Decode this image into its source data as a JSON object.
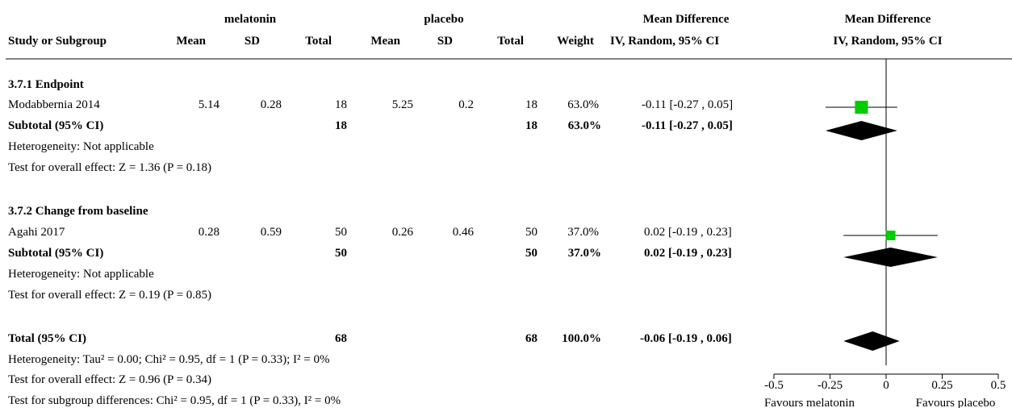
{
  "header": {
    "group1": "melatonin",
    "group2": "placebo",
    "effect_title": "Mean Difference",
    "effect_method": "IV, Random, 95% CI",
    "plot_title": "Mean Difference",
    "plot_method": "IV, Random, 95% CI",
    "col_study": "Study or Subgroup",
    "col_mean1": "Mean",
    "col_sd1": "SD",
    "col_total1": "Total",
    "col_mean2": "Mean",
    "col_sd2": "SD",
    "col_total2": "Total",
    "col_weight": "Weight"
  },
  "subgroups": [
    {
      "title": "3.7.1 Endpoint",
      "study": {
        "name": "Modabbernia 2014",
        "mean1": "5.14",
        "sd1": "0.28",
        "n1": "18",
        "mean2": "5.25",
        "sd2": "0.2",
        "n2": "18",
        "weight": "63.0%",
        "ci": "-0.11 [-0.27 , 0.05]"
      },
      "subtotal": {
        "label": "Subtotal (95% CI)",
        "n1": "18",
        "n2": "18",
        "weight": "63.0%",
        "ci": "-0.11 [-0.27 , 0.05]"
      },
      "heterogeneity": "Heterogeneity: Not applicable",
      "overall": "Test for overall effect: Z = 1.36 (P = 0.18)"
    },
    {
      "title": "3.7.2 Change from baseline",
      "study": {
        "name": "Agahi 2017",
        "mean1": "0.28",
        "sd1": "0.59",
        "n1": "50",
        "mean2": "0.26",
        "sd2": "0.46",
        "n2": "50",
        "weight": "37.0%",
        "ci": "0.02 [-0.19 , 0.23]"
      },
      "subtotal": {
        "label": "Subtotal (95% CI)",
        "n1": "50",
        "n2": "50",
        "weight": "37.0%",
        "ci": "0.02 [-0.19 , 0.23]"
      },
      "heterogeneity": "Heterogeneity: Not applicable",
      "overall": "Test for overall effect: Z = 0.19 (P = 0.85)"
    }
  ],
  "total": {
    "label": "Total (95% CI)",
    "n1": "68",
    "n2": "68",
    "weight": "100.0%",
    "ci": "-0.06 [-0.19 , 0.06]",
    "heterogeneity": "Heterogeneity: Tau² = 0.00; Chi² = 0.95, df = 1 (P = 0.33); I² = 0%",
    "overall": "Test for overall effect: Z = 0.96 (P = 0.34)",
    "subgroup_diff": "Test for subgroup differences: Chi² = 0.95, df = 1 (P = 0.33), I² = 0%"
  },
  "colors": {
    "study_marker": "#00cc00",
    "diamond": "#000000",
    "line": "#000000"
  },
  "chart_data": {
    "type": "forest",
    "xlim": [
      -0.5,
      0.5
    ],
    "ticks": [
      -0.5,
      -0.25,
      0,
      0.25,
      0.5
    ],
    "tick_labels": [
      "-0.5",
      "-0.25",
      "0",
      "0.25",
      "0.5"
    ],
    "favours_left": "Favours melatonin",
    "favours_right": "Favours placebo",
    "studies": [
      {
        "name": "Modabbernia 2014",
        "md": -0.11,
        "lo": -0.27,
        "hi": 0.05,
        "weight": 63.0
      },
      {
        "name": "Agahi 2017",
        "md": 0.02,
        "lo": -0.19,
        "hi": 0.23,
        "weight": 37.0
      }
    ],
    "diamonds": [
      {
        "name": "Subtotal 3.7.1",
        "md": -0.11,
        "lo": -0.27,
        "hi": 0.05
      },
      {
        "name": "Subtotal 3.7.2",
        "md": 0.02,
        "lo": -0.19,
        "hi": 0.23
      },
      {
        "name": "Total",
        "md": -0.06,
        "lo": -0.19,
        "hi": 0.06
      }
    ]
  }
}
